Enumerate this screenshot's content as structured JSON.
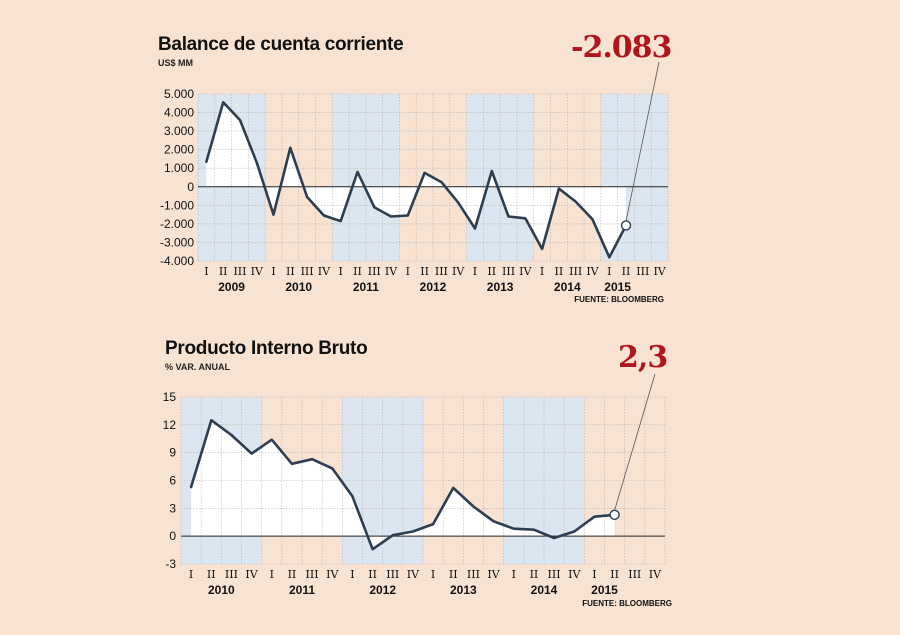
{
  "chart_data": [
    {
      "type": "line",
      "title": "Balance de cuenta corriente",
      "unit": "US$ MM",
      "source": "FUENTE: BLOOMBERG",
      "highlight_value": "-2.083",
      "years": [
        "2009",
        "2010",
        "2011",
        "2012",
        "2013",
        "2014",
        "2015"
      ],
      "quarter_labels": [
        "I",
        "II",
        "III",
        "IV"
      ],
      "ylim": [
        -4000,
        5000
      ],
      "y_ticks": [
        5000,
        4000,
        3000,
        2000,
        1000,
        0,
        -1000,
        -2000,
        -3000,
        -4000
      ],
      "y_tick_labels": [
        "5.000",
        "4.000",
        "3.000",
        "2.000",
        "1.000",
        "0",
        "-1.000",
        "-2.000",
        "-3.000",
        "-4.000"
      ],
      "x": [
        "2009-I",
        "2009-II",
        "2009-III",
        "2009-IV",
        "2010-I",
        "2010-II",
        "2010-III",
        "2010-IV",
        "2011-I",
        "2011-II",
        "2011-III",
        "2011-IV",
        "2012-I",
        "2012-II",
        "2012-III",
        "2012-IV",
        "2013-I",
        "2013-II",
        "2013-III",
        "2013-IV",
        "2014-I",
        "2014-II",
        "2014-III",
        "2014-IV",
        "2015-I",
        "2015-II"
      ],
      "values": [
        1350,
        4550,
        3600,
        1300,
        -1500,
        2100,
        -550,
        -1550,
        -1850,
        800,
        -1100,
        -1600,
        -1550,
        750,
        250,
        -850,
        -2250,
        850,
        -1600,
        -1700,
        -3350,
        -100,
        -800,
        -1750,
        -3800,
        -2083
      ],
      "colors": {
        "line": "#2c3e50",
        "shade": "#dce6f0",
        "accent": "#b0151c"
      },
      "grid": true
    },
    {
      "type": "line",
      "title": "Producto Interno Bruto",
      "unit": "% VAR. ANUAL",
      "source": "FUENTE: BLOOMBERG",
      "highlight_value": "2,3",
      "years": [
        "2010",
        "2011",
        "2012",
        "2013",
        "2014",
        "2015"
      ],
      "quarter_labels": [
        "I",
        "II",
        "III",
        "IV"
      ],
      "ylim": [
        -3,
        15
      ],
      "y_ticks": [
        15,
        12,
        9,
        6,
        3,
        0,
        -3
      ],
      "y_tick_labels": [
        "15",
        "12",
        "9",
        "6",
        "3",
        "0",
        "-3"
      ],
      "x": [
        "2010-I",
        "2010-II",
        "2010-III",
        "2010-IV",
        "2011-I",
        "2011-II",
        "2011-III",
        "2011-IV",
        "2012-I",
        "2012-II",
        "2012-III",
        "2012-IV",
        "2013-I",
        "2013-II",
        "2013-III",
        "2013-IV",
        "2014-I",
        "2014-II",
        "2014-III",
        "2014-IV",
        "2015-I",
        "2015-II"
      ],
      "values": [
        5.3,
        12.5,
        10.9,
        8.9,
        10.4,
        7.8,
        8.3,
        7.3,
        4.3,
        -1.4,
        0.1,
        0.5,
        1.3,
        5.2,
        3.2,
        1.6,
        0.8,
        0.7,
        -0.2,
        0.5,
        2.1,
        2.3
      ],
      "colors": {
        "line": "#2c3e50",
        "shade": "#dce6f0",
        "accent": "#b0151c"
      },
      "grid": true
    }
  ]
}
